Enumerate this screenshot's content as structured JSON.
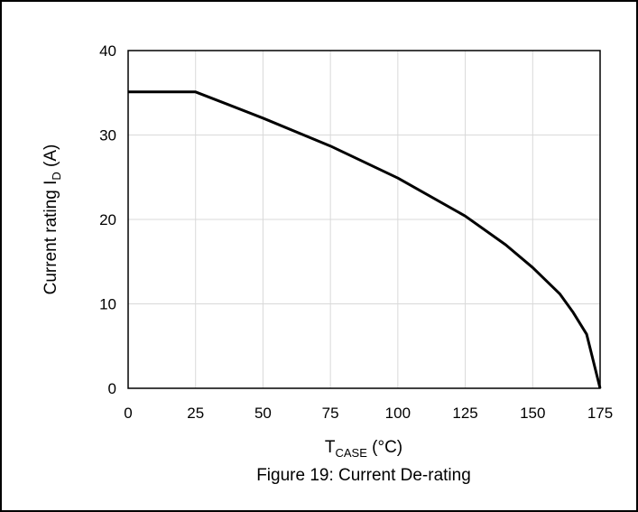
{
  "caption": "Figure 19: Current De-rating",
  "chart_data": {
    "type": "line",
    "xlabel": {
      "main": "T",
      "sub": "CASE",
      "unit": " (°C)"
    },
    "ylabel": {
      "main": "Current rating I",
      "sub": "D",
      "unit": " (A)"
    },
    "xlim": [
      0,
      175
    ],
    "ylim": [
      0,
      40
    ],
    "x_ticks": [
      0,
      25,
      50,
      75,
      100,
      125,
      150,
      175
    ],
    "y_ticks": [
      0,
      10,
      20,
      30,
      40
    ],
    "grid": true,
    "series": [
      {
        "x": [
          0,
          25,
          50,
          75,
          100,
          125,
          140,
          150,
          160,
          165,
          170,
          175
        ],
        "y": [
          35.1,
          35.1,
          32.0,
          28.7,
          24.9,
          20.4,
          17.0,
          14.3,
          11.2,
          9.0,
          6.4,
          0
        ]
      }
    ]
  }
}
